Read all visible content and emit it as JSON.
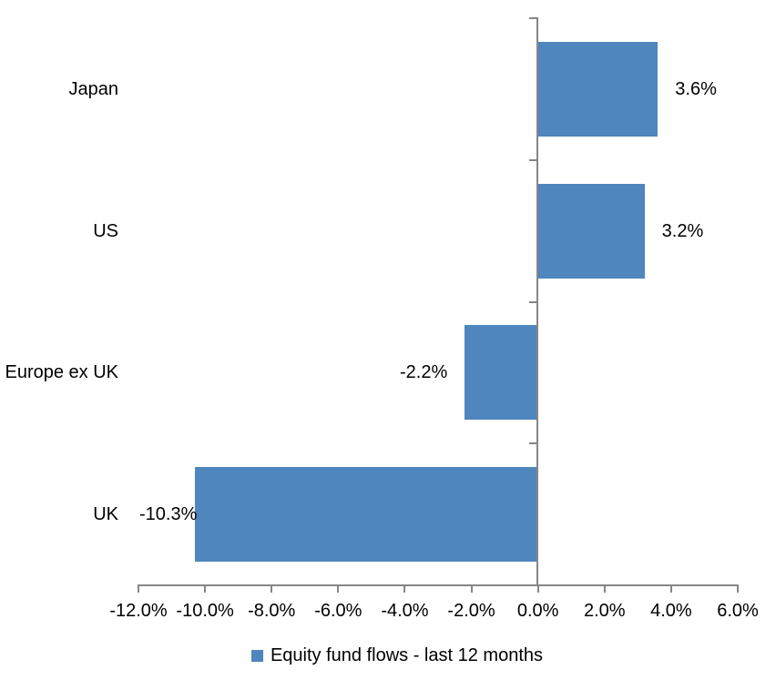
{
  "chart_data": {
    "type": "bar",
    "orientation": "horizontal",
    "title": "",
    "xlabel": "",
    "ylabel": "",
    "categories": [
      "Japan",
      "US",
      "Europe ex UK",
      "UK"
    ],
    "series": [
      {
        "name": "Equity fund flows - last 12 months",
        "values": [
          3.6,
          3.2,
          -2.2,
          -10.3
        ],
        "data_labels": [
          "3.6%",
          "3.2%",
          "-2.2%",
          "-10.3%"
        ]
      }
    ],
    "xlim": [
      -12,
      6
    ],
    "x_tick_step": 2,
    "x_tick_values": [
      -12,
      -10,
      -8,
      -6,
      -4,
      -2,
      0,
      2,
      4,
      6
    ],
    "x_tick_labels": [
      "-12.0%",
      "-10.0%",
      "-8.0%",
      "-6.0%",
      "-4.0%",
      "-2.0%",
      "0.0%",
      "2.0%",
      "4.0%",
      "6.0%"
    ],
    "grid": false,
    "legend_position": "bottom",
    "colors": {
      "bar_fill": "#4f86bd",
      "axis_line": "#868686",
      "text": "#000000",
      "background": "#ffffff"
    }
  },
  "legend": {
    "label": "Equity fund flows - last 12 months",
    "marker_color": "#4f86bd"
  }
}
